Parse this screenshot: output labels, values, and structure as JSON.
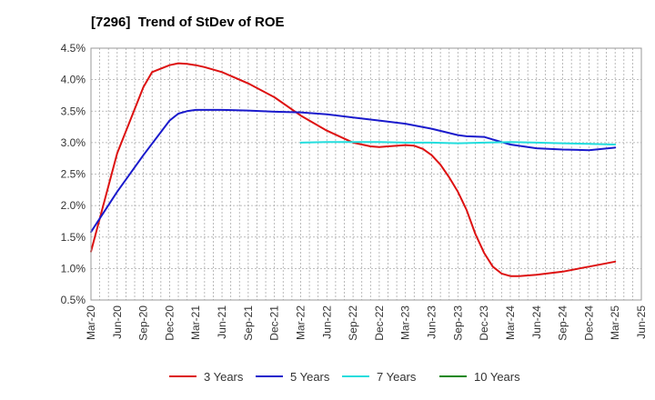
{
  "chart_data": {
    "type": "line",
    "title": "[7296]  Trend of StDev of ROE",
    "xlabel": "",
    "ylabel": "",
    "ylim": [
      0.5,
      4.5
    ],
    "y_ticks": [
      "0.5%",
      "1.0%",
      "1.5%",
      "2.0%",
      "2.5%",
      "3.0%",
      "3.5%",
      "4.0%",
      "4.5%"
    ],
    "y_tick_values": [
      0.5,
      1.0,
      1.5,
      2.0,
      2.5,
      3.0,
      3.5,
      4.0,
      4.5
    ],
    "x_ticks": [
      "Mar-20",
      "Jun-20",
      "Sep-20",
      "Dec-20",
      "Mar-21",
      "Jun-21",
      "Sep-21",
      "Dec-21",
      "Mar-22",
      "Jun-22",
      "Sep-22",
      "Dec-22",
      "Mar-23",
      "Jun-23",
      "Sep-23",
      "Dec-23",
      "Mar-24",
      "Jun-24",
      "Sep-24",
      "Dec-24",
      "Mar-25",
      "Jun-25"
    ],
    "grid": true,
    "legend_position": "bottom",
    "series": [
      {
        "name": "3 Years",
        "color": "#dd1111",
        "x": [
          "Mar-20",
          "Jun-20",
          "Sep-20",
          "Oct-20",
          "Dec-20",
          "Jan-21",
          "Feb-21",
          "Mar-21",
          "Apr-21",
          "Jun-21",
          "Sep-21",
          "Dec-21",
          "Mar-22",
          "Jun-22",
          "Sep-22",
          "Nov-22",
          "Dec-22",
          "Jan-23",
          "Mar-23",
          "Apr-23",
          "May-23",
          "Jun-23",
          "Jul-23",
          "Aug-23",
          "Sep-23",
          "Oct-23",
          "Nov-23",
          "Dec-23",
          "Jan-24",
          "Feb-24",
          "Mar-24",
          "Apr-24",
          "May-24",
          "Jun-24",
          "Sep-24",
          "Dec-24",
          "Mar-25"
        ],
        "values": [
          1.27,
          2.83,
          3.88,
          4.12,
          4.23,
          4.26,
          4.25,
          4.23,
          4.2,
          4.12,
          3.94,
          3.72,
          3.43,
          3.19,
          3.0,
          2.94,
          2.93,
          2.94,
          2.96,
          2.95,
          2.9,
          2.8,
          2.65,
          2.45,
          2.22,
          1.93,
          1.55,
          1.25,
          1.03,
          0.92,
          0.88,
          0.88,
          0.89,
          0.9,
          0.95,
          1.03,
          1.11
        ]
      },
      {
        "name": "5 Years",
        "color": "#1a1acc",
        "x": [
          "Mar-20",
          "Jun-20",
          "Sep-20",
          "Dec-20",
          "Jan-21",
          "Feb-21",
          "Mar-21",
          "Jun-21",
          "Sep-21",
          "Dec-21",
          "Mar-22",
          "Jun-22",
          "Sep-22",
          "Dec-22",
          "Mar-23",
          "Jun-23",
          "Sep-23",
          "Oct-23",
          "Dec-23",
          "Jan-24",
          "Mar-24",
          "Jun-24",
          "Sep-24",
          "Dec-24",
          "Mar-25"
        ],
        "values": [
          1.58,
          2.22,
          2.8,
          3.35,
          3.46,
          3.5,
          3.52,
          3.52,
          3.51,
          3.49,
          3.48,
          3.45,
          3.4,
          3.35,
          3.3,
          3.22,
          3.12,
          3.1,
          3.09,
          3.05,
          2.97,
          2.91,
          2.89,
          2.88,
          2.92
        ]
      },
      {
        "name": "7 Years",
        "color": "#22dddd",
        "x": [
          "Mar-22",
          "Jun-22",
          "Sep-22",
          "Dec-22",
          "Mar-23",
          "Jun-23",
          "Sep-23",
          "Dec-23",
          "Mar-24",
          "Jun-24",
          "Sep-24",
          "Dec-24",
          "Mar-25"
        ],
        "values": [
          3.0,
          3.01,
          3.01,
          3.01,
          3.0,
          3.0,
          2.99,
          3.0,
          3.01,
          3.0,
          2.99,
          2.98,
          2.97
        ]
      },
      {
        "name": "10 Years",
        "color": "#118811",
        "x": [],
        "values": []
      }
    ]
  }
}
